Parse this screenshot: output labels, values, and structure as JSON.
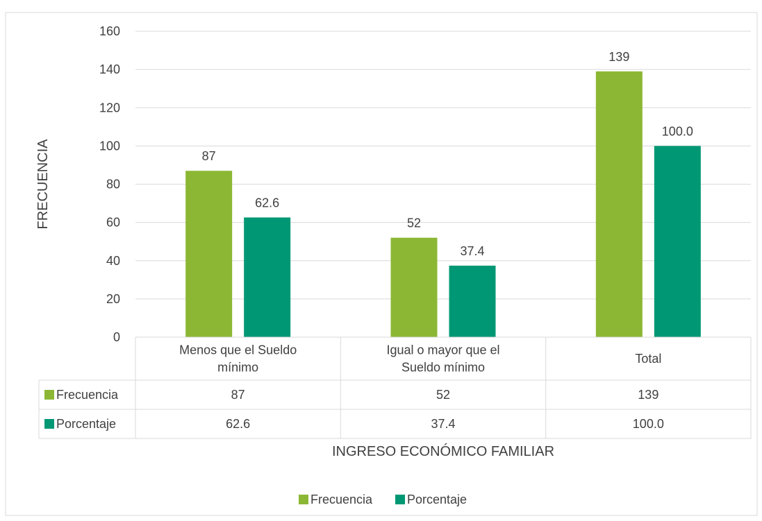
{
  "chart_data": {
    "type": "bar",
    "categories": [
      [
        "Menos que el Sueldo",
        "mínimo"
      ],
      [
        "Igual o mayor que el",
        "Sueldo mínimo"
      ],
      [
        "Total"
      ]
    ],
    "series": [
      {
        "name": "Frecuencia",
        "values": [
          87,
          52,
          139
        ],
        "labels": [
          "87",
          "52",
          "139"
        ],
        "color": "#8CB734"
      },
      {
        "name": "Porcentaje",
        "values": [
          62.6,
          37.4,
          100.0
        ],
        "labels": [
          "62.6",
          "37.4",
          "100.0"
        ],
        "color": "#009874"
      }
    ],
    "ylabel": "FRECUENCIA",
    "xlabel": "INGRESO ECONÓMICO FAMILIAR",
    "ylim": [
      0,
      160
    ],
    "yticks": [
      0,
      20,
      40,
      60,
      80,
      100,
      120,
      140,
      160
    ],
    "grid": true,
    "data_table": true,
    "legend": "bottom",
    "frame_color": "#D9D9D9",
    "grid_color": "#D9D9D9",
    "text_color": "#404040"
  }
}
